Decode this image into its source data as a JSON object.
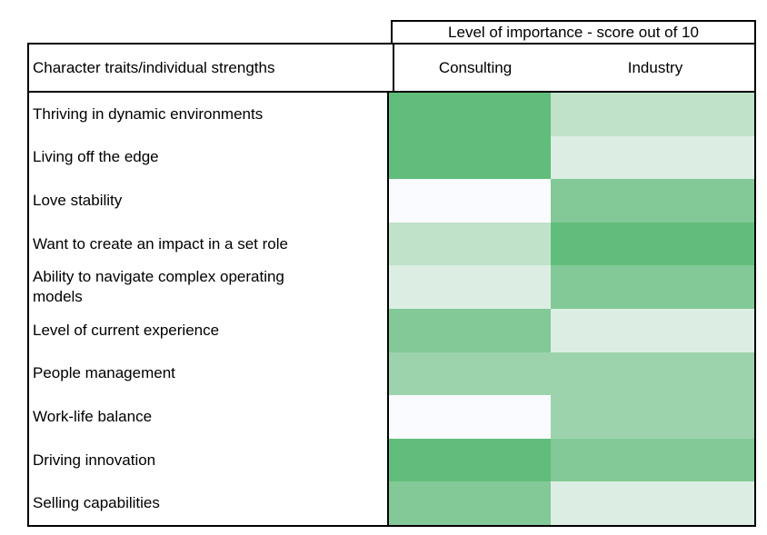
{
  "header": {
    "importance_title": "Level of importance - score out of 10",
    "corner": "Character traits/individual strengths",
    "columns": [
      "Consulting",
      "Industry"
    ]
  },
  "palette": {
    "border": "#000000",
    "background": "#FFFFFF",
    "scale_high": "#61BD7B",
    "scale_low": "#FAFBFE"
  },
  "table": {
    "rows": [
      {
        "label": "Thriving in dynamic environments",
        "consulting_color": "#61BD7B",
        "industry_color": "#BFE2C9"
      },
      {
        "label": "Living off the edge",
        "consulting_color": "#61BD7B",
        "industry_color": "#DCEEE3"
      },
      {
        "label": "Love stability",
        "consulting_color": "#FAFBFE",
        "industry_color": "#82C997"
      },
      {
        "label": "Want to create an impact in a set role",
        "consulting_color": "#BFE2C9",
        "industry_color": "#61BD7B"
      },
      {
        "label": "Ability to navigate complex operating models",
        "consulting_color": "#DCEEE3",
        "industry_color": "#82C997"
      },
      {
        "label": "Level of current experience",
        "consulting_color": "#82C997",
        "industry_color": "#DCEEE3"
      },
      {
        "label": "People management",
        "consulting_color": "#9CD3AD",
        "industry_color": "#9CD3AD"
      },
      {
        "label": "Work-life balance",
        "consulting_color": "#FAFBFE",
        "industry_color": "#9CD3AD"
      },
      {
        "label": "Driving innovation",
        "consulting_color": "#61BD7B",
        "industry_color": "#82C997"
      },
      {
        "label": "Selling capabilities",
        "consulting_color": "#82C997",
        "industry_color": "#DCEEE3"
      }
    ]
  },
  "chart_data": {
    "type": "heatmap",
    "title": "Level of importance - score out of 10",
    "row_axis_label": "Character traits/individual strengths",
    "columns": [
      "Consulting",
      "Industry"
    ],
    "rows": [
      "Thriving in dynamic environments",
      "Living off the edge",
      "Love stability",
      "Want to create an impact in a set role",
      "Ability to navigate complex operating models",
      "Level of current experience",
      "People management",
      "Work-life balance",
      "Driving innovation",
      "Selling capabilities"
    ],
    "series": [
      {
        "name": "Consulting",
        "values": [
          10,
          10,
          0,
          4,
          2,
          8,
          6,
          0,
          10,
          8
        ],
        "cell_colors": [
          "#61BD7B",
          "#61BD7B",
          "#FAFBFE",
          "#BFE2C9",
          "#DCEEE3",
          "#82C997",
          "#9CD3AD",
          "#FAFBFE",
          "#61BD7B",
          "#82C997"
        ]
      },
      {
        "name": "Industry",
        "values": [
          4,
          2,
          8,
          10,
          8,
          2,
          6,
          6,
          8,
          2
        ],
        "cell_colors": [
          "#BFE2C9",
          "#DCEEE3",
          "#82C997",
          "#61BD7B",
          "#82C997",
          "#DCEEE3",
          "#9CD3AD",
          "#9CD3AD",
          "#82C997",
          "#DCEEE3"
        ]
      }
    ],
    "value_range": [
      0,
      10
    ],
    "value_encoding": "cell fill color on a white-to-green scale; numeric values estimated from shade",
    "color_scale": {
      "low": "#FAFBFE",
      "high": "#61BD7B"
    },
    "legend_position": "none",
    "grid": false
  }
}
